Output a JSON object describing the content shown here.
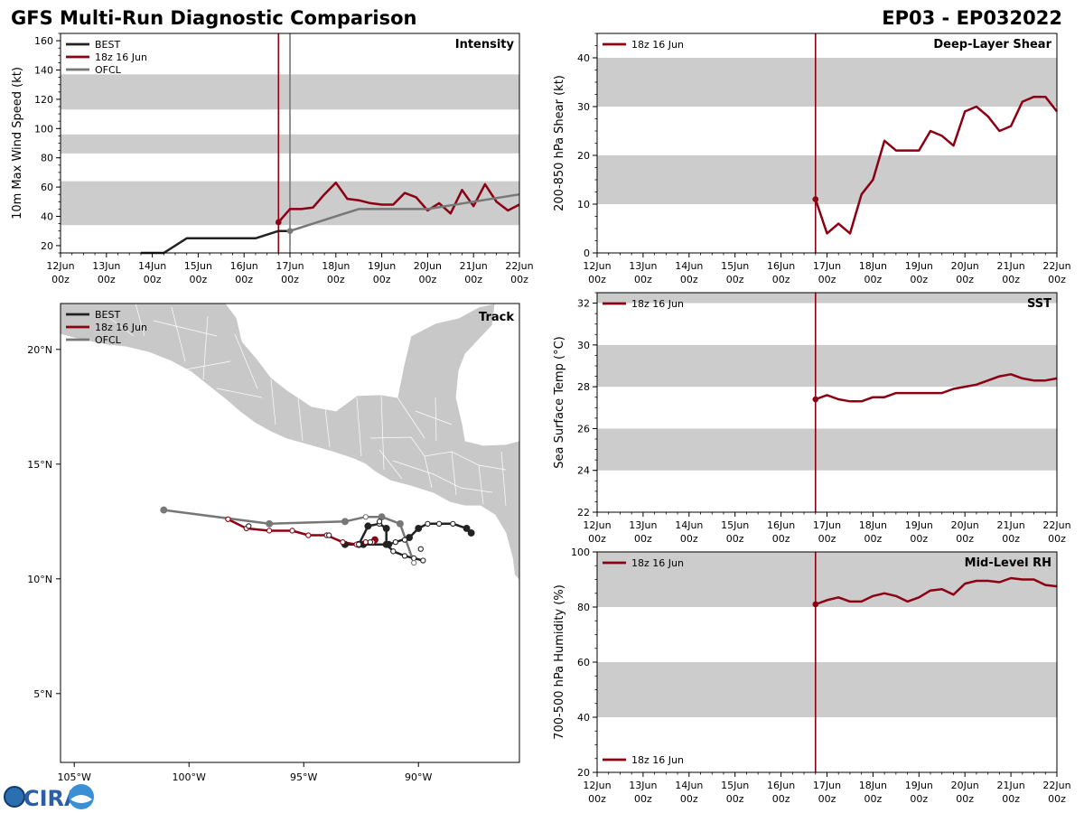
{
  "header": {
    "left_title": "GFS Multi-Run Diagnostic Comparison",
    "right_title": "EP03 - EP032022"
  },
  "logo": {
    "text": "CIRA"
  },
  "colors": {
    "best": "#222222",
    "run": "#8b0012",
    "ofcl": "#777777",
    "band": "#cccccc",
    "land": "#c8c8c8"
  },
  "time_axis": {
    "days": [
      "12",
      "13",
      "14",
      "15",
      "16",
      "17",
      "18",
      "19",
      "20",
      "21",
      "22"
    ],
    "ticks": [
      "12Jun\n00z",
      "13Jun\n00z",
      "14Jun\n00z",
      "15Jun\n00z",
      "16Jun\n00z",
      "17Jun\n00z",
      "18Jun\n00z",
      "19Jun\n00z",
      "20Jun\n00z",
      "21Jun\n00z",
      "22Jun\n00z"
    ]
  },
  "chart_data": [
    {
      "id": "intensity",
      "type": "line",
      "title": "Intensity",
      "ylabel": "10m Max Wind Speed (kt)",
      "xlim": [
        0,
        10
      ],
      "ylim": [
        15,
        165
      ],
      "yticks": [
        20,
        40,
        60,
        80,
        100,
        120,
        140,
        160
      ],
      "bands": [
        [
          34,
          64
        ],
        [
          83,
          96
        ],
        [
          113,
          137
        ]
      ],
      "vlines": [
        {
          "x": 4.75,
          "series": "run"
        },
        {
          "x": 5.0,
          "series": "ofcl"
        }
      ],
      "legend": [
        "BEST",
        "18z 16 Jun",
        "OFCL"
      ],
      "series": [
        {
          "name": "BEST",
          "key": "best",
          "x": [
            1.75,
            2.25,
            2.75,
            3.25,
            3.75,
            4.25,
            4.75,
            5.0
          ],
          "y": [
            15,
            15,
            25,
            25,
            25,
            25,
            30,
            30
          ]
        },
        {
          "name": "18z 16 Jun",
          "key": "run",
          "start_marker": true,
          "x": [
            4.75,
            5.0,
            5.25,
            5.5,
            5.75,
            6.0,
            6.25,
            6.5,
            6.75,
            7.0,
            7.25,
            7.5,
            7.75,
            8.0,
            8.25,
            8.5,
            8.75,
            9.0,
            9.25,
            9.5,
            9.75,
            10.0
          ],
          "y": [
            36,
            45,
            45,
            46,
            55,
            63,
            52,
            51,
            49,
            48,
            48,
            56,
            53,
            44,
            49,
            42,
            58,
            47,
            62,
            50,
            44,
            48
          ]
        },
        {
          "name": "OFCL",
          "key": "ofcl",
          "start_marker": true,
          "x": [
            5.0,
            5.5,
            6.5,
            8.0,
            10.0
          ],
          "y": [
            30,
            35,
            45,
            45,
            55
          ]
        }
      ]
    },
    {
      "id": "shear",
      "type": "line",
      "title": "Deep-Layer Shear",
      "ylabel": "200-850 hPa Shear (kt)",
      "xlim": [
        0,
        10
      ],
      "ylim": [
        0,
        45
      ],
      "yticks": [
        0,
        10,
        20,
        30,
        40
      ],
      "bands": [
        [
          10,
          20
        ],
        [
          30,
          40
        ]
      ],
      "vlines": [
        {
          "x": 4.75,
          "series": "run"
        }
      ],
      "legend": [
        "18z 16 Jun"
      ],
      "legend_pos": "top-left",
      "series": [
        {
          "name": "18z 16 Jun",
          "key": "run",
          "start_marker": true,
          "x": [
            4.75,
            5.0,
            5.25,
            5.5,
            5.75,
            6.0,
            6.25,
            6.5,
            6.75,
            7.0,
            7.25,
            7.5,
            7.75,
            8.0,
            8.25,
            8.5,
            8.75,
            9.0,
            9.25,
            9.5,
            9.75,
            10.0
          ],
          "y": [
            11,
            4,
            6,
            4,
            12,
            15,
            23,
            21,
            21,
            21,
            25,
            24,
            22,
            29,
            30,
            28,
            25,
            26,
            31,
            32,
            32,
            29
          ]
        }
      ]
    },
    {
      "id": "sst",
      "type": "line",
      "title": "SST",
      "ylabel": "Sea Surface Temp (°C)",
      "xlim": [
        0,
        10
      ],
      "ylim": [
        22,
        32.5
      ],
      "yticks": [
        22,
        24,
        26,
        28,
        30,
        32
      ],
      "bands": [
        [
          24,
          26
        ],
        [
          28,
          30
        ],
        [
          32,
          32.5
        ]
      ],
      "vlines": [
        {
          "x": 4.75,
          "series": "run"
        }
      ],
      "legend": [
        "18z 16 Jun"
      ],
      "legend_pos": "top-left",
      "series": [
        {
          "name": "18z 16 Jun",
          "key": "run",
          "start_marker": true,
          "x": [
            4.75,
            5.0,
            5.25,
            5.5,
            5.75,
            6.0,
            6.25,
            6.5,
            6.75,
            7.0,
            7.25,
            7.5,
            7.75,
            8.0,
            8.25,
            8.5,
            8.75,
            9.0,
            9.25,
            9.5,
            9.75,
            10.0
          ],
          "y": [
            27.4,
            27.6,
            27.4,
            27.3,
            27.3,
            27.5,
            27.5,
            27.7,
            27.7,
            27.7,
            27.7,
            27.7,
            27.9,
            28.0,
            28.1,
            28.3,
            28.5,
            28.6,
            28.4,
            28.3,
            28.3,
            28.4
          ]
        }
      ]
    },
    {
      "id": "rh",
      "type": "line",
      "title": "Mid-Level RH",
      "ylabel": "700-500 hPa Humidity (%)",
      "xlim": [
        0,
        10
      ],
      "ylim": [
        20,
        100
      ],
      "yticks": [
        20,
        40,
        60,
        80,
        100
      ],
      "bands": [
        [
          40,
          60
        ],
        [
          80,
          100
        ]
      ],
      "vlines": [
        {
          "x": 4.75,
          "series": "run"
        }
      ],
      "legend": [
        "18z 16 Jun"
      ],
      "legend_pos": "bottom-left",
      "series": [
        {
          "name": "18z 16 Jun",
          "key": "run",
          "start_marker": true,
          "x": [
            4.75,
            5.0,
            5.25,
            5.5,
            5.75,
            6.0,
            6.25,
            6.5,
            6.75,
            7.0,
            7.25,
            7.5,
            7.75,
            8.0,
            8.25,
            8.5,
            8.75,
            9.0,
            9.25,
            9.5,
            9.75,
            10.0
          ],
          "y": [
            81,
            82.5,
            83.5,
            82,
            82,
            84,
            85,
            84,
            82,
            83.5,
            86,
            86.5,
            84.5,
            88.5,
            89.5,
            89.5,
            89,
            90.5,
            90,
            90,
            88,
            87.5
          ]
        }
      ]
    },
    {
      "id": "track",
      "type": "scatter",
      "title": "Track",
      "xlim": [
        -105.6,
        -85.6
      ],
      "ylim": [
        2,
        22
      ],
      "xticks": [
        -105,
        -100,
        -95,
        -90
      ],
      "xtick_labels": [
        "105°W",
        "100°W",
        "95°W",
        "90°W"
      ],
      "yticks": [
        5,
        10,
        15,
        20
      ],
      "ytick_labels": [
        "5°N",
        "10°N",
        "15°N",
        "20°N"
      ],
      "legend": [
        "BEST",
        "18z 16 Jun",
        "OFCL"
      ],
      "series": [
        {
          "name": "BEST",
          "key": "best",
          "lon": [
            -89.8,
            -90.2,
            -90.6,
            -91.1,
            -91.4,
            -91.4,
            -91.7,
            -92.2,
            -92.6,
            -93.2,
            -92.4,
            -91.3,
            -90.4,
            -90.0,
            -89.6,
            -89.1,
            -88.5,
            -87.9,
            -87.7
          ],
          "lat": [
            10.8,
            10.9,
            11.0,
            11.2,
            11.5,
            12.2,
            12.4,
            12.3,
            11.5,
            11.5,
            11.5,
            11.5,
            11.8,
            12.2,
            12.4,
            12.4,
            12.4,
            12.2,
            12.0
          ],
          "filled": [
            false,
            false,
            false,
            false,
            true,
            true,
            false,
            true,
            true,
            true,
            true,
            true,
            true,
            true,
            false,
            false,
            false,
            true,
            true
          ]
        },
        {
          "name": "18z 16 Jun",
          "key": "run",
          "lon": [
            -91.9,
            -92.0,
            -92.3,
            -92.7,
            -93.3,
            -94.0,
            -94.8,
            -95.5,
            -96.5,
            -97.5,
            -98.3
          ],
          "lat": [
            11.7,
            11.6,
            11.6,
            11.5,
            11.6,
            11.9,
            11.9,
            12.1,
            12.1,
            12.2,
            12.6
          ],
          "filled": [
            true,
            false,
            false,
            false,
            false,
            false,
            false,
            false,
            false,
            false,
            false
          ]
        },
        {
          "name": "OFCL",
          "key": "ofcl",
          "lon": [
            -90.2,
            -90.8,
            -91.6,
            -92.3,
            -93.2,
            -96.5,
            -101.1
          ],
          "lat": [
            10.7,
            12.4,
            12.7,
            12.7,
            12.5,
            12.4,
            13.0
          ],
          "filled": [
            false,
            true,
            true,
            false,
            true,
            true,
            true
          ]
        },
        {
          "name": "BEST-open",
          "key": "best_open",
          "lon": [
            -89.9,
            -90.6,
            -91.0,
            -91.7,
            -92.1,
            -92.6,
            -93.9,
            -97.4
          ],
          "lat": [
            11.3,
            11.7,
            11.6,
            12.5,
            11.6,
            11.5,
            11.9,
            12.3
          ],
          "filled": [
            false,
            false,
            false,
            false,
            false,
            false,
            false,
            false
          ]
        }
      ]
    }
  ]
}
